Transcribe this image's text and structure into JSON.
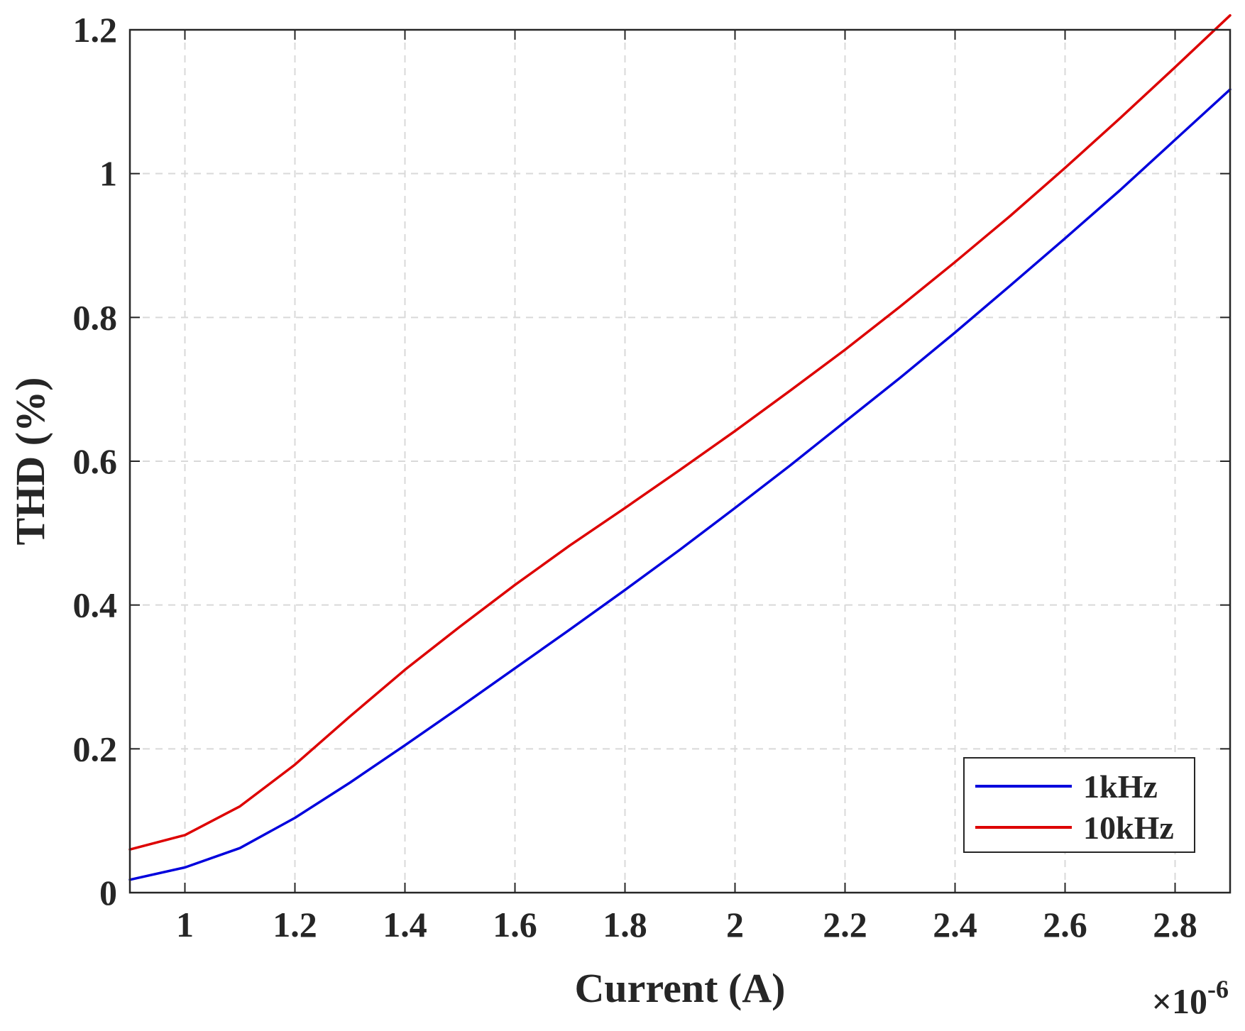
{
  "chart_data": {
    "type": "line",
    "title": "",
    "xlabel": "Current (A)",
    "ylabel": "THD (%)",
    "x_exponent_label": "×10",
    "x_exponent_power": "-6",
    "xlim": [
      0.9,
      2.9
    ],
    "ylim": [
      0,
      1.2
    ],
    "xticks": [
      1,
      1.2,
      1.4,
      1.6,
      1.8,
      2,
      2.2,
      2.4,
      2.6,
      2.8
    ],
    "xtick_labels": [
      "1",
      "1.2",
      "1.4",
      "1.6",
      "1.8",
      "2",
      "2.2",
      "2.4",
      "2.6",
      "2.8"
    ],
    "yticks": [
      0,
      0.2,
      0.4,
      0.6,
      0.8,
      1,
      1.2
    ],
    "ytick_labels": [
      "0",
      "0.2",
      "0.4",
      "0.6",
      "0.8",
      "1",
      "1.2"
    ],
    "grid": true,
    "legend_position": "bottom-right",
    "x": [
      0.9,
      1.0,
      1.1,
      1.2,
      1.3,
      1.4,
      1.5,
      1.6,
      1.7,
      1.8,
      1.9,
      2.0,
      2.1,
      2.2,
      2.3,
      2.4,
      2.5,
      2.6,
      2.7,
      2.8,
      2.9
    ],
    "series": [
      {
        "name": "1kHz",
        "color": "#0000dd",
        "values": [
          0.018,
          0.035,
          0.062,
          0.104,
          0.153,
          0.205,
          0.258,
          0.312,
          0.366,
          0.421,
          0.477,
          0.535,
          0.594,
          0.655,
          0.716,
          0.779,
          0.844,
          0.91,
          0.977,
          1.047,
          1.117
        ]
      },
      {
        "name": "10kHz",
        "color": "#dd0000",
        "values": [
          0.06,
          0.08,
          0.12,
          0.178,
          0.245,
          0.31,
          0.37,
          0.428,
          0.483,
          0.535,
          0.588,
          0.642,
          0.698,
          0.755,
          0.815,
          0.877,
          0.941,
          1.008,
          1.077,
          1.148,
          1.22
        ]
      }
    ]
  }
}
